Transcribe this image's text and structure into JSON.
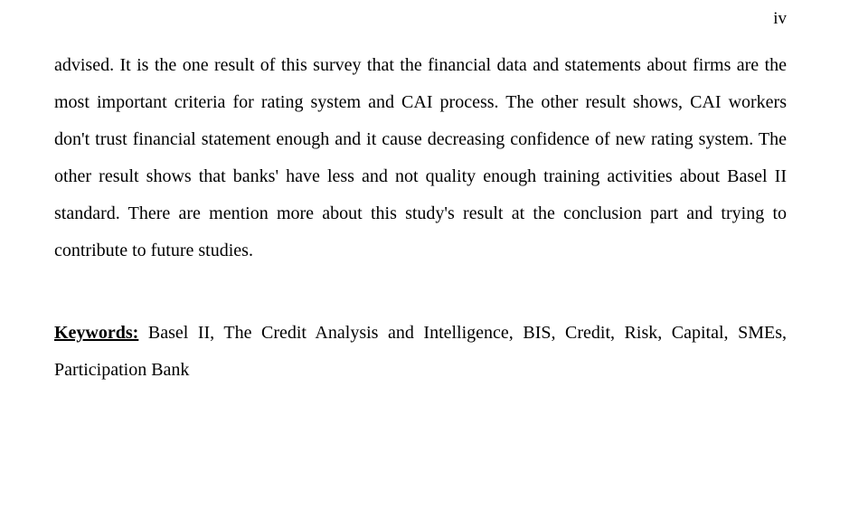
{
  "page": {
    "number": "iv",
    "body": "advised. It is the one result of this survey that the financial data and statements about firms are the most important criteria for rating system and CAI process. The other result shows, CAI workers don't trust financial statement enough and it cause decreasing confidence of new rating system. The other result shows that banks' have less and not quality enough training activities about Basel II standard. There are mention more about this study's result at the conclusion part and trying to contribute to future studies.",
    "keywords_label": "Keywords:",
    "keywords_text": " Basel II, The Credit Analysis and Intelligence, BIS, Credit, Risk, Capital, SMEs, Participation Bank"
  },
  "style": {
    "background_color": "#ffffff",
    "text_color": "#000000",
    "font_family": "Times New Roman",
    "body_fontsize": 20,
    "page_number_fontsize": 19,
    "line_height": 2.05
  }
}
